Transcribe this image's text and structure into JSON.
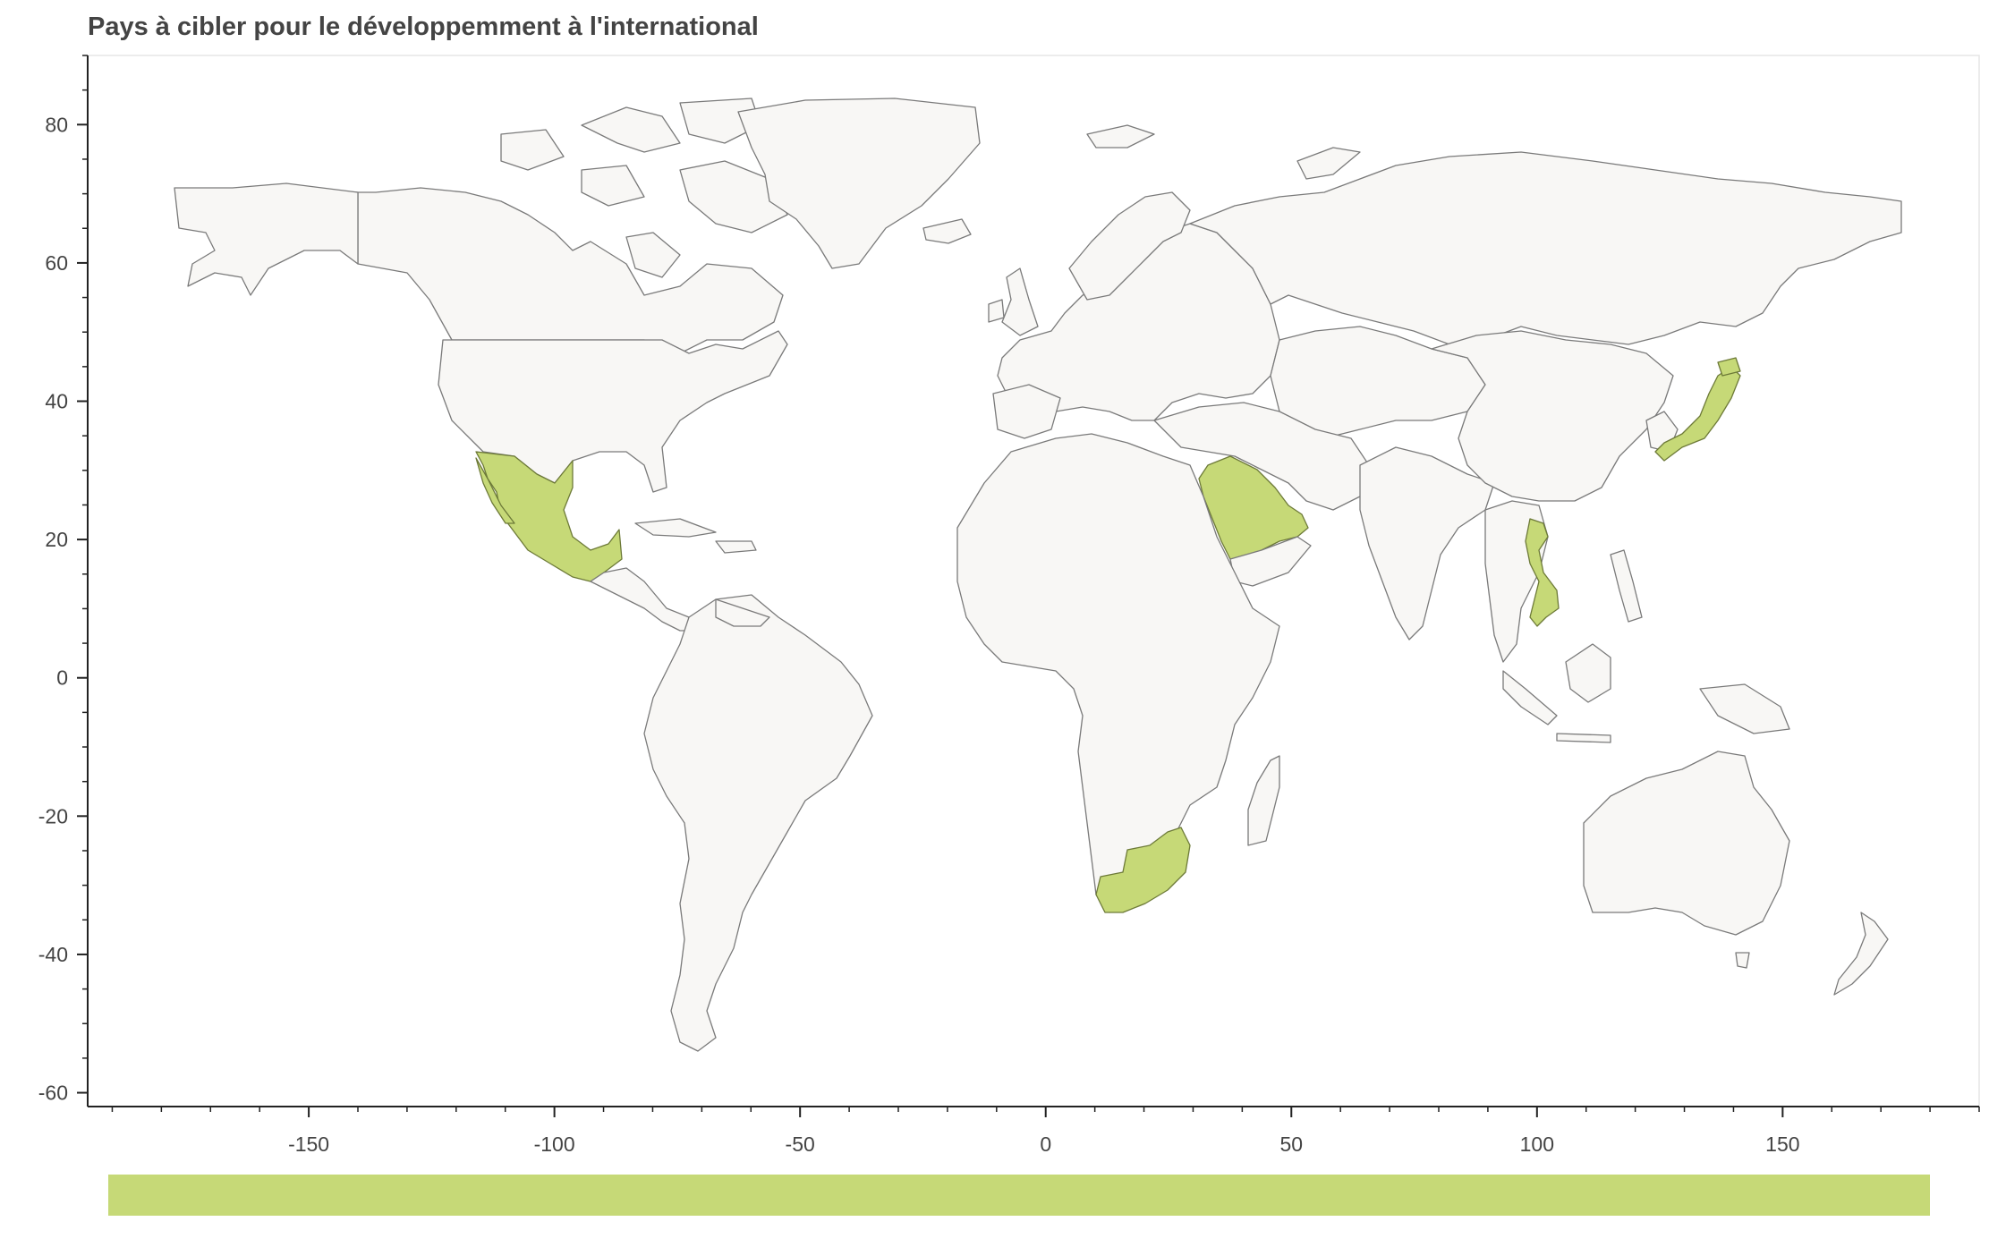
{
  "chart_data": {
    "type": "choropleth-map",
    "title": "Pays à cibler pour le développemment à l'international",
    "xlim": [
      -195,
      190
    ],
    "ylim": [
      -62,
      90
    ],
    "x_ticks": [
      -150,
      -100,
      -50,
      0,
      50,
      100,
      150
    ],
    "y_ticks": [
      -60,
      -40,
      -20,
      0,
      20,
      40,
      60,
      80
    ],
    "minor_step_x": 10,
    "minor_step_y": 5,
    "highlight_color": "#c6d977",
    "base_color": "#f8f7f5",
    "highlighted_countries": [
      "Mexique",
      "Arabie saoudite",
      "Japon",
      "Viêt Nam",
      "Afrique du Sud"
    ]
  }
}
